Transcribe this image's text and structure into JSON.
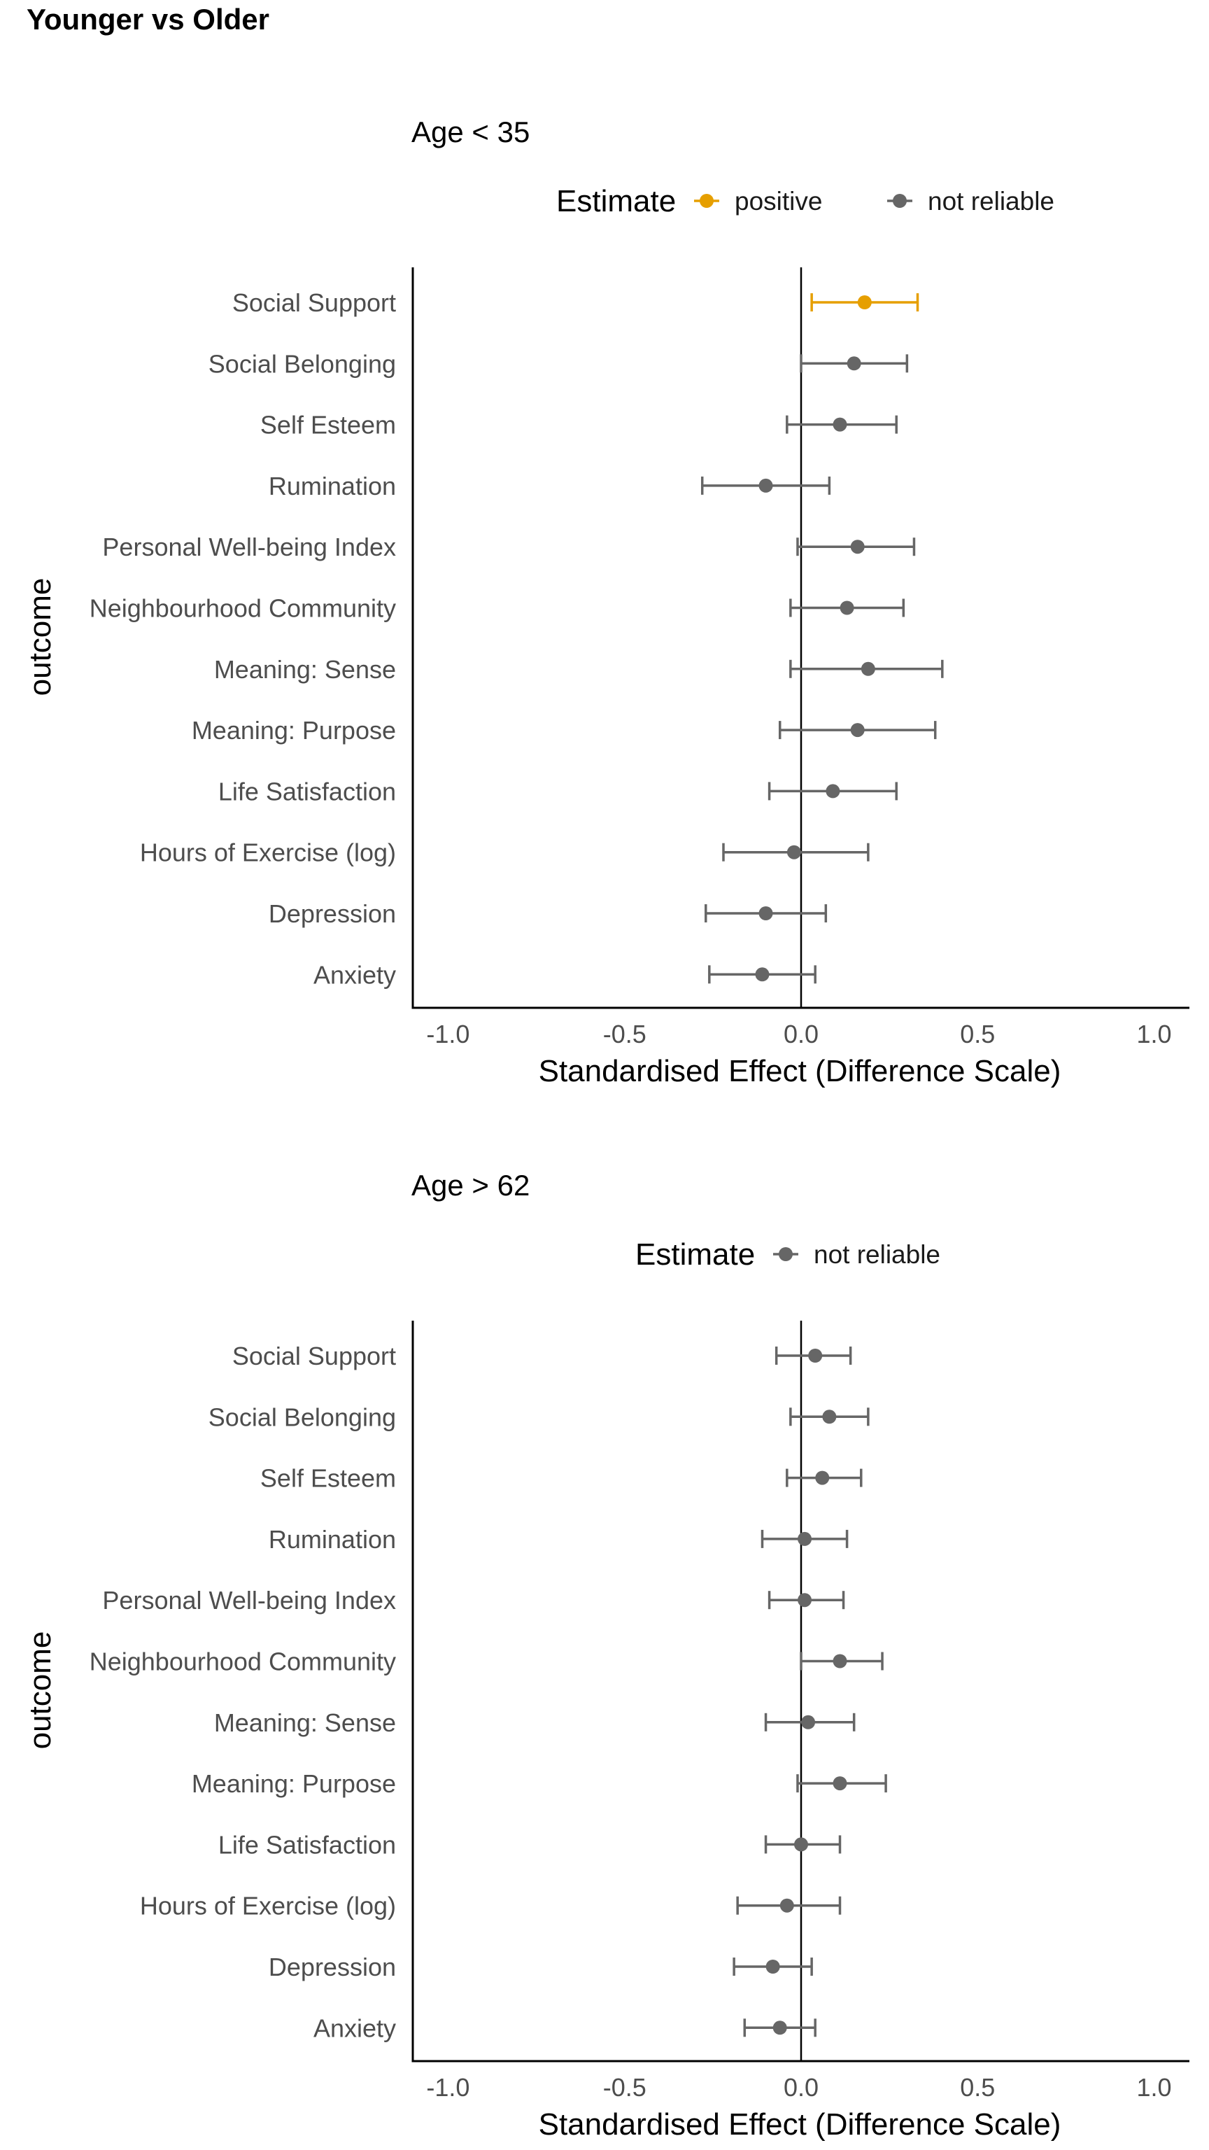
{
  "figure": {
    "title": "Younger vs Older"
  },
  "colors": {
    "positive": "#E69F00",
    "not_reliable": "#666666",
    "axis": "#000000",
    "tick_text": "#4d4d4d"
  },
  "chart_data": [
    {
      "type": "scatter",
      "title": "Age < 35",
      "xlabel": "Standardised Effect (Difference Scale)",
      "ylabel": "outcome",
      "xlim": [
        -1.1,
        1.1
      ],
      "xticks": [
        -1.0,
        -0.5,
        0.0,
        0.5,
        1.0
      ],
      "xtick_labels": [
        "-1.0",
        "-0.5",
        "0.0",
        "0.5",
        "1.0"
      ],
      "grid": false,
      "legend": {
        "title": "Estimate",
        "position": "top",
        "entries": [
          {
            "label": "positive",
            "key": "positive"
          },
          {
            "label": "not reliable",
            "key": "not_reliable"
          }
        ]
      },
      "categories": [
        "Social Support",
        "Social Belonging",
        "Self Esteem",
        "Rumination",
        "Personal Well-being Index",
        "Neighbourhood Community",
        "Meaning: Sense",
        "Meaning: Purpose",
        "Life Satisfaction",
        "Hours of Exercise (log)",
        "Depression",
        "Anxiety"
      ],
      "estimate": [
        0.18,
        0.15,
        0.11,
        -0.1,
        0.16,
        0.13,
        0.19,
        0.16,
        0.09,
        -0.02,
        -0.1,
        -0.11
      ],
      "lower": [
        0.03,
        0.0,
        -0.04,
        -0.28,
        -0.01,
        -0.03,
        -0.03,
        -0.06,
        -0.09,
        -0.22,
        -0.27,
        -0.26
      ],
      "upper": [
        0.33,
        0.3,
        0.27,
        0.08,
        0.32,
        0.29,
        0.4,
        0.38,
        0.27,
        0.19,
        0.07,
        0.04
      ],
      "status": [
        "positive",
        "not_reliable",
        "not_reliable",
        "not_reliable",
        "not_reliable",
        "not_reliable",
        "not_reliable",
        "not_reliable",
        "not_reliable",
        "not_reliable",
        "not_reliable",
        "not_reliable"
      ]
    },
    {
      "type": "scatter",
      "title": "Age > 62",
      "xlabel": "Standardised Effect (Difference Scale)",
      "ylabel": "outcome",
      "xlim": [
        -1.1,
        1.1
      ],
      "xticks": [
        -1.0,
        -0.5,
        0.0,
        0.5,
        1.0
      ],
      "xtick_labels": [
        "-1.0",
        "-0.5",
        "0.0",
        "0.5",
        "1.0"
      ],
      "grid": false,
      "legend": {
        "title": "Estimate",
        "position": "top",
        "entries": [
          {
            "label": "not reliable",
            "key": "not_reliable"
          }
        ]
      },
      "categories": [
        "Social Support",
        "Social Belonging",
        "Self Esteem",
        "Rumination",
        "Personal Well-being Index",
        "Neighbourhood Community",
        "Meaning: Sense",
        "Meaning: Purpose",
        "Life Satisfaction",
        "Hours of Exercise (log)",
        "Depression",
        "Anxiety"
      ],
      "estimate": [
        0.04,
        0.08,
        0.06,
        0.01,
        0.01,
        0.11,
        0.02,
        0.11,
        0.0,
        -0.04,
        -0.08,
        -0.06
      ],
      "lower": [
        -0.07,
        -0.03,
        -0.04,
        -0.11,
        -0.09,
        0.0,
        -0.1,
        -0.01,
        -0.1,
        -0.18,
        -0.19,
        -0.16
      ],
      "upper": [
        0.14,
        0.19,
        0.17,
        0.13,
        0.12,
        0.23,
        0.15,
        0.24,
        0.11,
        0.11,
        0.03,
        0.04
      ],
      "status": [
        "not_reliable",
        "not_reliable",
        "not_reliable",
        "not_reliable",
        "not_reliable",
        "not_reliable",
        "not_reliable",
        "not_reliable",
        "not_reliable",
        "not_reliable",
        "not_reliable",
        "not_reliable"
      ]
    }
  ]
}
